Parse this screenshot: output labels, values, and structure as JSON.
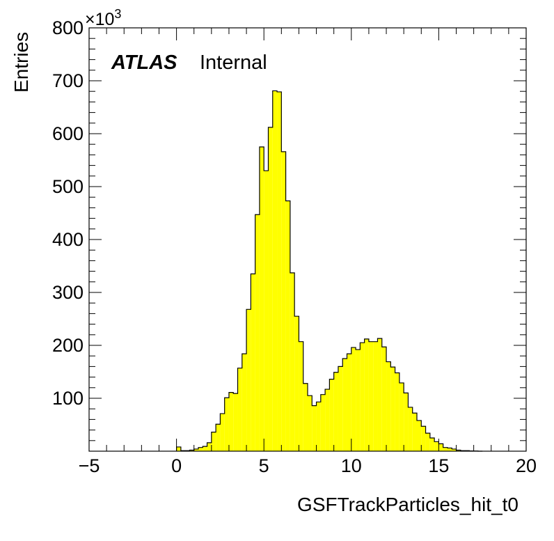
{
  "chart_data": {
    "type": "histogram",
    "xlabel": "GSFTrackParticles_hit_t0",
    "ylabel": "Entries",
    "y_multiplier_label": "×10",
    "y_multiplier_exp": "3",
    "annotation": {
      "atlas": "ATLAS",
      "status": "Internal"
    },
    "xlim": [
      -5,
      20
    ],
    "ylim": [
      0,
      800000
    ],
    "bin_width": 0.25,
    "fill_color": "#ffff00",
    "line_color": "#000000",
    "x_ticks": [
      {
        "value": -5,
        "label": "−5"
      },
      {
        "value": 0,
        "label": "0"
      },
      {
        "value": 5,
        "label": "5"
      },
      {
        "value": 10,
        "label": "10"
      },
      {
        "value": 15,
        "label": "15"
      },
      {
        "value": 20,
        "label": "20"
      }
    ],
    "y_ticks": [
      {
        "value": 100000,
        "label": "100"
      },
      {
        "value": 200000,
        "label": "200"
      },
      {
        "value": 300000,
        "label": "300"
      },
      {
        "value": 400000,
        "label": "400"
      },
      {
        "value": 500000,
        "label": "500"
      },
      {
        "value": 600000,
        "label": "600"
      },
      {
        "value": 700000,
        "label": "700"
      },
      {
        "value": 800000,
        "label": "800"
      }
    ],
    "bins": [
      {
        "x": 0.0,
        "y": 8000
      },
      {
        "x": 0.25,
        "y": 1000
      },
      {
        "x": 0.5,
        "y": 1000
      },
      {
        "x": 0.75,
        "y": 2000
      },
      {
        "x": 1.0,
        "y": 4000
      },
      {
        "x": 1.25,
        "y": 7000
      },
      {
        "x": 1.5,
        "y": 9000
      },
      {
        "x": 1.75,
        "y": 16000
      },
      {
        "x": 2.0,
        "y": 36000
      },
      {
        "x": 2.25,
        "y": 51000
      },
      {
        "x": 2.5,
        "y": 71000
      },
      {
        "x": 2.75,
        "y": 101000
      },
      {
        "x": 3.0,
        "y": 111000
      },
      {
        "x": 3.25,
        "y": 109000
      },
      {
        "x": 3.5,
        "y": 157000
      },
      {
        "x": 3.75,
        "y": 184000
      },
      {
        "x": 4.0,
        "y": 268000
      },
      {
        "x": 4.25,
        "y": 335000
      },
      {
        "x": 4.5,
        "y": 447000
      },
      {
        "x": 4.75,
        "y": 575000
      },
      {
        "x": 5.0,
        "y": 530000
      },
      {
        "x": 5.25,
        "y": 612000
      },
      {
        "x": 5.5,
        "y": 681000
      },
      {
        "x": 5.75,
        "y": 679000
      },
      {
        "x": 6.0,
        "y": 566000
      },
      {
        "x": 6.25,
        "y": 473000
      },
      {
        "x": 6.5,
        "y": 337000
      },
      {
        "x": 6.75,
        "y": 255000
      },
      {
        "x": 7.0,
        "y": 207000
      },
      {
        "x": 7.25,
        "y": 128000
      },
      {
        "x": 7.5,
        "y": 105000
      },
      {
        "x": 7.75,
        "y": 86000
      },
      {
        "x": 8.0,
        "y": 93000
      },
      {
        "x": 8.25,
        "y": 107000
      },
      {
        "x": 8.5,
        "y": 117000
      },
      {
        "x": 8.75,
        "y": 136000
      },
      {
        "x": 9.0,
        "y": 149000
      },
      {
        "x": 9.25,
        "y": 160000
      },
      {
        "x": 9.5,
        "y": 175000
      },
      {
        "x": 9.75,
        "y": 184000
      },
      {
        "x": 10.0,
        "y": 196000
      },
      {
        "x": 10.25,
        "y": 192000
      },
      {
        "x": 10.5,
        "y": 205000
      },
      {
        "x": 10.75,
        "y": 212000
      },
      {
        "x": 11.0,
        "y": 207000
      },
      {
        "x": 11.25,
        "y": 207000
      },
      {
        "x": 11.5,
        "y": 213000
      },
      {
        "x": 11.75,
        "y": 197000
      },
      {
        "x": 12.0,
        "y": 169000
      },
      {
        "x": 12.25,
        "y": 159000
      },
      {
        "x": 12.5,
        "y": 148000
      },
      {
        "x": 12.75,
        "y": 129000
      },
      {
        "x": 13.0,
        "y": 110000
      },
      {
        "x": 13.25,
        "y": 83000
      },
      {
        "x": 13.5,
        "y": 72000
      },
      {
        "x": 13.75,
        "y": 58000
      },
      {
        "x": 14.0,
        "y": 47000
      },
      {
        "x": 14.25,
        "y": 34000
      },
      {
        "x": 14.5,
        "y": 25000
      },
      {
        "x": 14.75,
        "y": 18000
      },
      {
        "x": 15.0,
        "y": 14000
      },
      {
        "x": 15.25,
        "y": 7000
      },
      {
        "x": 15.5,
        "y": 6000
      },
      {
        "x": 15.75,
        "y": 4000
      },
      {
        "x": 16.0,
        "y": 2000
      },
      {
        "x": 16.25,
        "y": 1000
      },
      {
        "x": 16.5,
        "y": 1000
      },
      {
        "x": 16.75,
        "y": 500
      },
      {
        "x": 17.0,
        "y": 300
      },
      {
        "x": 17.25,
        "y": 0
      }
    ]
  }
}
